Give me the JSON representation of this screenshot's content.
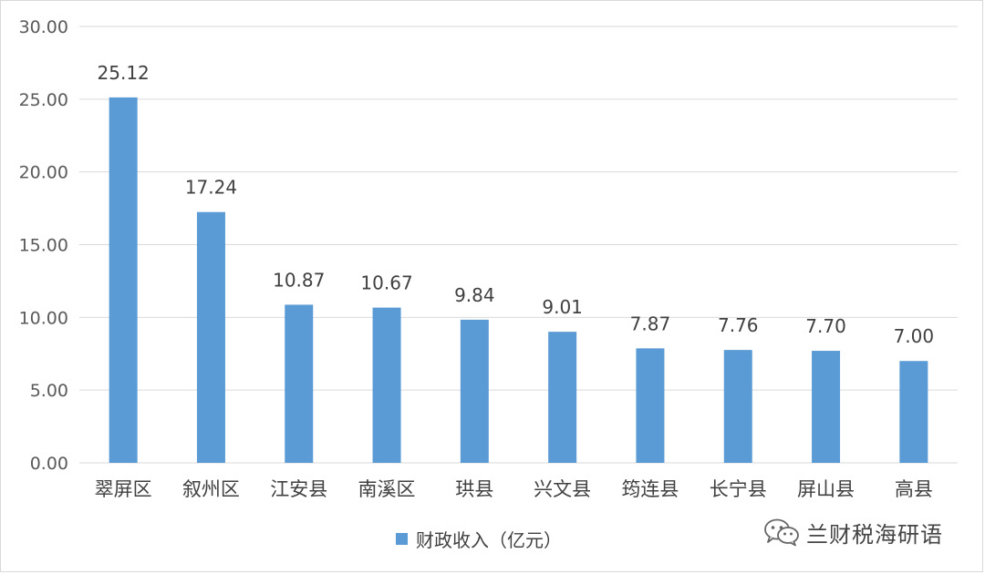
{
  "chart_data": {
    "type": "bar",
    "categories": [
      "翠屏区",
      "叙州区",
      "江安县",
      "南溪区",
      "珙县",
      "兴文县",
      "筠连县",
      "长宁县",
      "屏山县",
      "高县"
    ],
    "series": [
      {
        "name": "财政收入（亿元）",
        "values": [
          25.12,
          17.24,
          10.87,
          10.67,
          9.84,
          9.01,
          7.87,
          7.76,
          7.7,
          7.0
        ],
        "data_labels": [
          "25.12",
          "17.24",
          "10.87",
          "10.67",
          "9.84",
          "9.01",
          "7.87",
          "7.76",
          "7.70",
          "7.00"
        ],
        "color": "#5b9bd5"
      }
    ],
    "ylim": [
      0,
      30
    ],
    "yticks": [
      0,
      5,
      10,
      15,
      20,
      25,
      30
    ],
    "ytick_labels": [
      "0.00",
      "5.00",
      "10.00",
      "15.00",
      "20.00",
      "25.00",
      "30.00"
    ],
    "grid": true,
    "legend_position": "bottom",
    "title": "",
    "xlabel": "",
    "ylabel": ""
  },
  "legend": {
    "label": "财政收入（亿元）",
    "color": "#5b9bd5"
  },
  "watermark": {
    "icon": "wechat-icon",
    "text": "兰财税海研语"
  },
  "colors": {
    "gridline": "#d9d9d9",
    "axis_text": "#595959"
  }
}
